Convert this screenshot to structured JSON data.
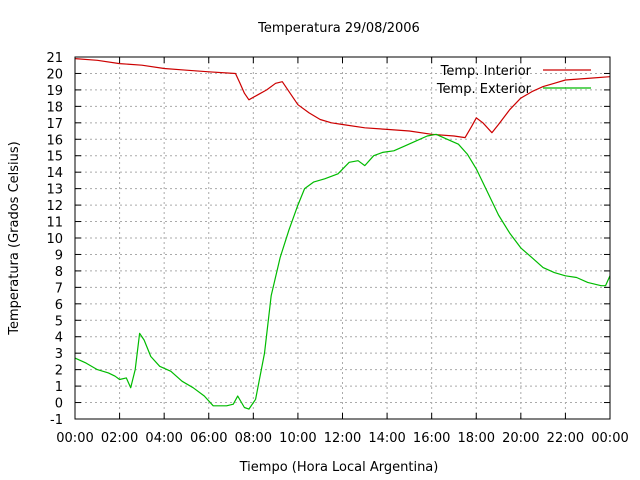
{
  "chart_data": {
    "type": "line",
    "title": "Temperatura 29/08/2006",
    "xlabel": "Tiempo (Hora Local Argentina)",
    "ylabel": "Temperatura (Grados Celsius)",
    "xlim": [
      0,
      24
    ],
    "ylim": [
      -1,
      21
    ],
    "grid": true,
    "legend_position": "top-right",
    "x_ticks": [
      "00:00",
      "02:00",
      "04:00",
      "06:00",
      "08:00",
      "10:00",
      "12:00",
      "14:00",
      "16:00",
      "18:00",
      "20:00",
      "22:00",
      "00:00"
    ],
    "y_ticks": [
      "-1",
      "0",
      "1",
      "2",
      "3",
      "4",
      "5",
      "6",
      "7",
      "8",
      "9",
      "10",
      "11",
      "12",
      "13",
      "14",
      "15",
      "16",
      "17",
      "18",
      "19",
      "20",
      "21"
    ],
    "series": [
      {
        "name": "Temp. Interior",
        "color": "#cc0000",
        "points": [
          [
            0,
            20.9
          ],
          [
            1,
            20.8
          ],
          [
            2,
            20.6
          ],
          [
            3,
            20.5
          ],
          [
            4,
            20.3
          ],
          [
            5,
            20.2
          ],
          [
            6,
            20.1
          ],
          [
            7.2,
            20.0
          ],
          [
            7.4,
            19.4
          ],
          [
            7.6,
            18.8
          ],
          [
            7.8,
            18.4
          ],
          [
            8.2,
            18.7
          ],
          [
            8.6,
            19.0
          ],
          [
            9.0,
            19.4
          ],
          [
            9.3,
            19.5
          ],
          [
            9.6,
            18.9
          ],
          [
            10.0,
            18.1
          ],
          [
            10.5,
            17.6
          ],
          [
            11.0,
            17.2
          ],
          [
            11.5,
            17.0
          ],
          [
            12.0,
            16.9
          ],
          [
            13.0,
            16.7
          ],
          [
            14.0,
            16.6
          ],
          [
            15.0,
            16.5
          ],
          [
            16.0,
            16.3
          ],
          [
            17.0,
            16.2
          ],
          [
            17.5,
            16.1
          ],
          [
            17.8,
            16.8
          ],
          [
            18.0,
            17.3
          ],
          [
            18.3,
            17.0
          ],
          [
            18.7,
            16.4
          ],
          [
            19.0,
            16.9
          ],
          [
            19.5,
            17.8
          ],
          [
            20.0,
            18.5
          ],
          [
            20.5,
            18.9
          ],
          [
            21.0,
            19.2
          ],
          [
            21.5,
            19.4
          ],
          [
            22.0,
            19.6
          ],
          [
            23.0,
            19.7
          ],
          [
            24.0,
            19.8
          ]
        ]
      },
      {
        "name": "Temp. Exterior",
        "color": "#00bb00",
        "points": [
          [
            0,
            2.7
          ],
          [
            0.5,
            2.4
          ],
          [
            1.0,
            2.0
          ],
          [
            1.5,
            1.8
          ],
          [
            1.8,
            1.6
          ],
          [
            2.0,
            1.4
          ],
          [
            2.3,
            1.5
          ],
          [
            2.5,
            0.9
          ],
          [
            2.7,
            2.0
          ],
          [
            2.9,
            4.2
          ],
          [
            3.1,
            3.8
          ],
          [
            3.4,
            2.8
          ],
          [
            3.8,
            2.2
          ],
          [
            4.3,
            1.9
          ],
          [
            4.8,
            1.3
          ],
          [
            5.3,
            0.9
          ],
          [
            5.8,
            0.4
          ],
          [
            6.2,
            -0.2
          ],
          [
            6.8,
            -0.2
          ],
          [
            7.1,
            -0.1
          ],
          [
            7.3,
            0.4
          ],
          [
            7.6,
            -0.3
          ],
          [
            7.8,
            -0.4
          ],
          [
            8.1,
            0.2
          ],
          [
            8.5,
            3.0
          ],
          [
            8.8,
            6.5
          ],
          [
            9.2,
            8.8
          ],
          [
            9.6,
            10.5
          ],
          [
            10.0,
            12.0
          ],
          [
            10.3,
            13.0
          ],
          [
            10.7,
            13.4
          ],
          [
            11.2,
            13.6
          ],
          [
            11.8,
            13.9
          ],
          [
            12.3,
            14.6
          ],
          [
            12.7,
            14.7
          ],
          [
            13.0,
            14.4
          ],
          [
            13.4,
            15.0
          ],
          [
            13.8,
            15.2
          ],
          [
            14.3,
            15.3
          ],
          [
            14.8,
            15.6
          ],
          [
            15.3,
            15.9
          ],
          [
            15.8,
            16.2
          ],
          [
            16.2,
            16.3
          ],
          [
            16.7,
            16.0
          ],
          [
            17.2,
            15.7
          ],
          [
            17.6,
            15.1
          ],
          [
            18.0,
            14.2
          ],
          [
            18.5,
            12.8
          ],
          [
            19.0,
            11.4
          ],
          [
            19.5,
            10.3
          ],
          [
            20.0,
            9.4
          ],
          [
            20.5,
            8.8
          ],
          [
            21.0,
            8.2
          ],
          [
            21.5,
            7.9
          ],
          [
            22.0,
            7.7
          ],
          [
            22.5,
            7.6
          ],
          [
            23.0,
            7.3
          ],
          [
            23.6,
            7.1
          ],
          [
            23.8,
            7.1
          ],
          [
            24.0,
            7.7
          ]
        ]
      }
    ]
  }
}
